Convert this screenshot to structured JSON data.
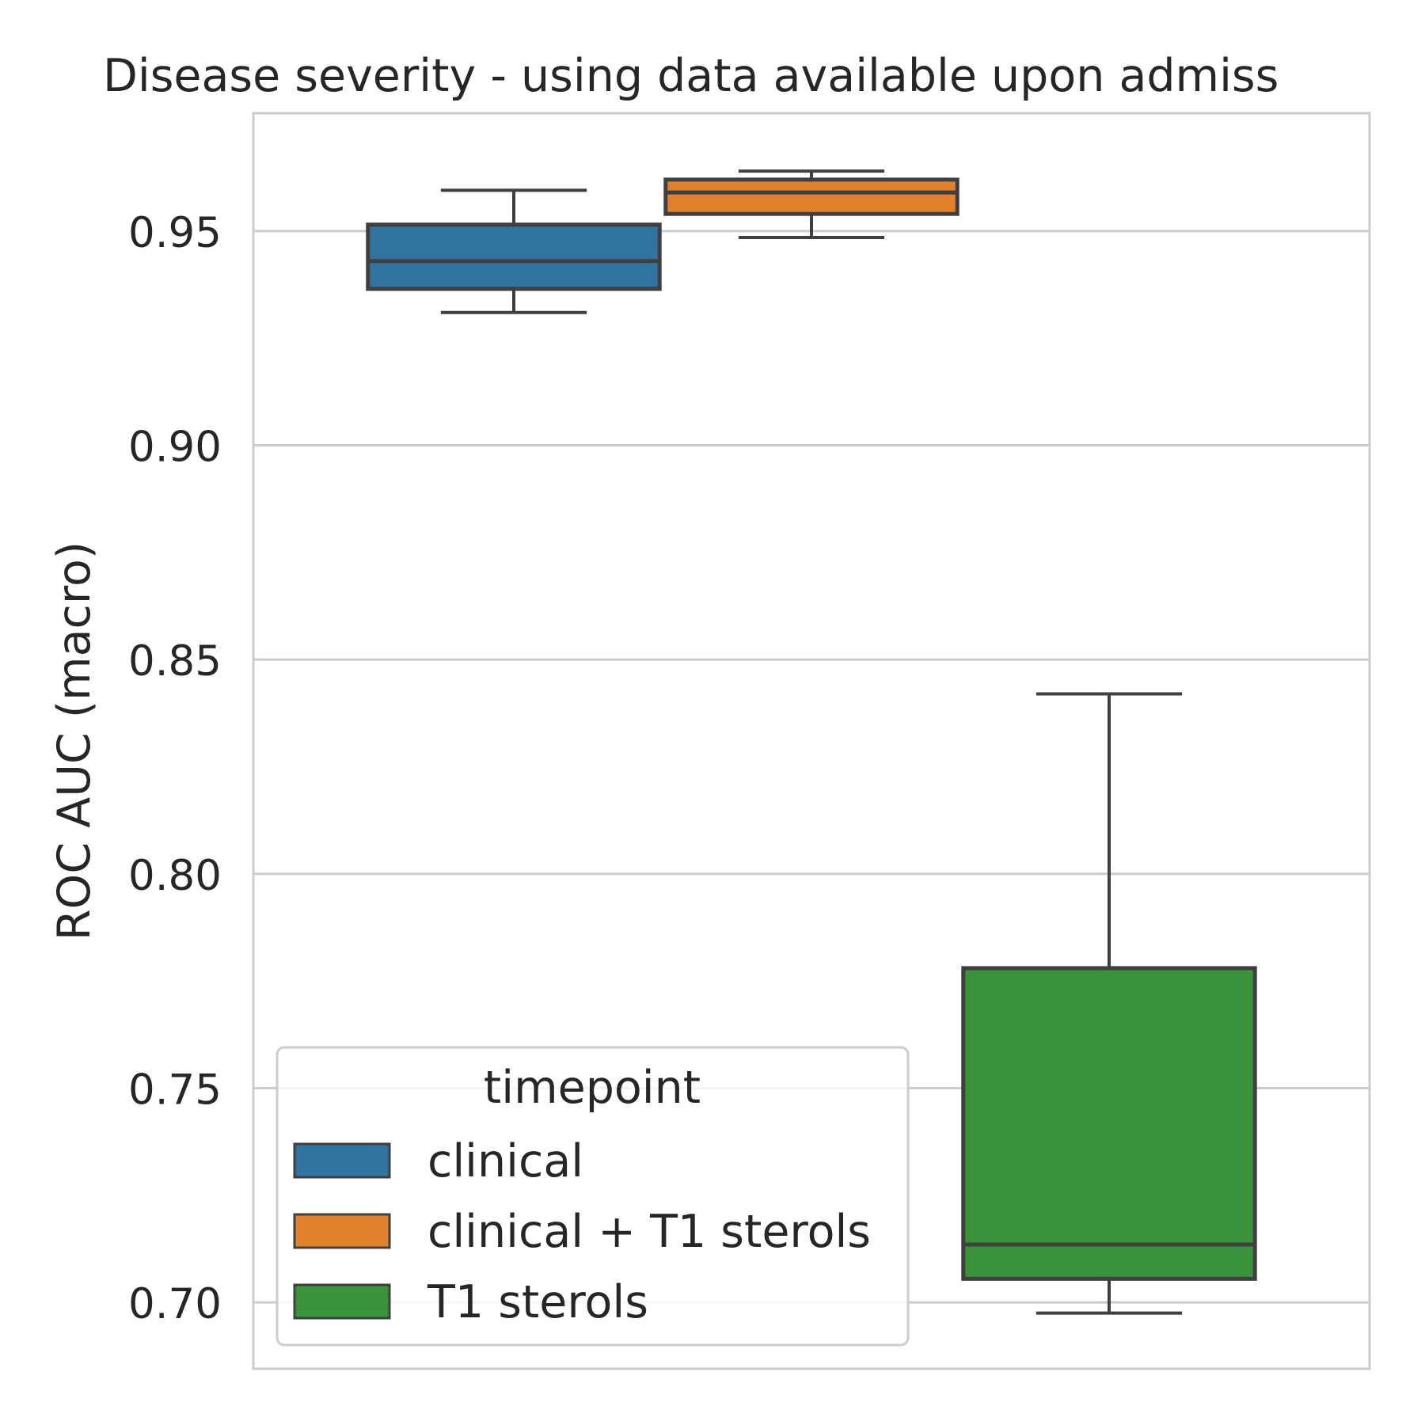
{
  "chart_data": {
    "type": "boxplot",
    "title": "Disease severity - using data available upon admiss",
    "xlabel": "",
    "ylabel": "ROC AUC (macro)",
    "ylim": [
      0.6845,
      0.9775
    ],
    "yticks": [
      "0.70",
      "0.75",
      "0.80",
      "0.85",
      "0.90",
      "0.95"
    ],
    "grid": "horizontal",
    "legend": {
      "title": "timepoint",
      "placement": "lower-left",
      "entries": [
        "clinical",
        "clinical + T1 sterols",
        "T1 sterols"
      ]
    },
    "series": [
      {
        "name": "clinical",
        "color": "#3274a1",
        "whisker_low": 0.931,
        "q1": 0.9365,
        "median": 0.943,
        "q3": 0.9515,
        "whisker_high": 0.9595
      },
      {
        "name": "clinical + T1 sterols",
        "color": "#e1812c",
        "whisker_low": 0.9485,
        "q1": 0.954,
        "median": 0.959,
        "q3": 0.962,
        "whisker_high": 0.964
      },
      {
        "name": "T1 sterols",
        "color": "#3a923a",
        "whisker_low": 0.6975,
        "q1": 0.7055,
        "median": 0.7135,
        "q3": 0.778,
        "whisker_high": 0.842
      }
    ]
  }
}
